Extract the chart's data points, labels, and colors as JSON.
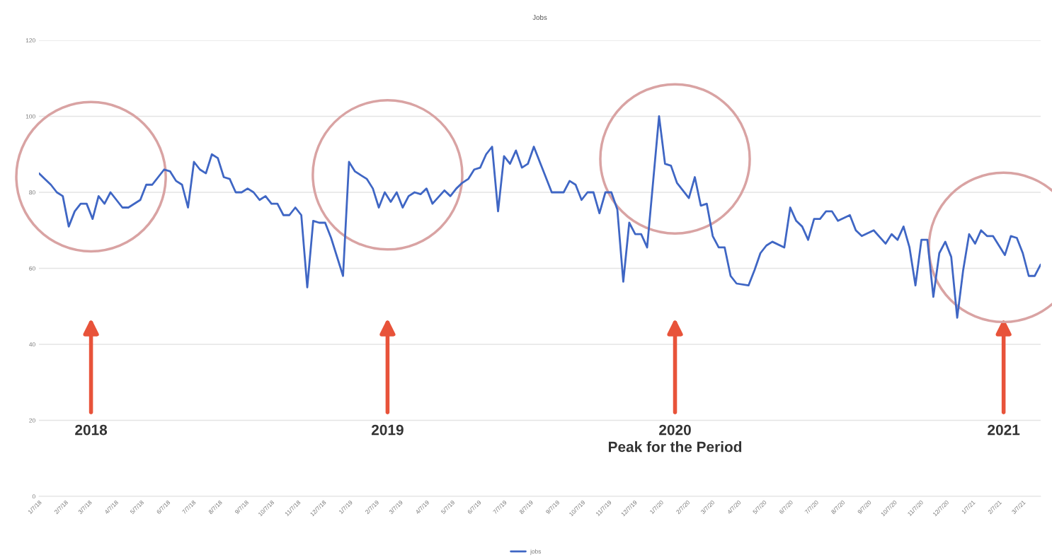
{
  "chart_data": {
    "type": "line",
    "title": "Jobs",
    "x": [
      "2018-01-07",
      "2018-01-14",
      "2018-01-21",
      "2018-01-28",
      "2018-02-04",
      "2018-02-11",
      "2018-02-18",
      "2018-02-25",
      "2018-03-04",
      "2018-03-11",
      "2018-03-18",
      "2018-03-25",
      "2018-04-01",
      "2018-04-08",
      "2018-04-15",
      "2018-04-22",
      "2018-05-06",
      "2018-05-13",
      "2018-05-20",
      "2018-05-27",
      "2018-06-03",
      "2018-06-10",
      "2018-06-17",
      "2018-06-24",
      "2018-07-01",
      "2018-07-08",
      "2018-07-15",
      "2018-07-22",
      "2018-07-29",
      "2018-08-05",
      "2018-08-12",
      "2018-08-19",
      "2018-08-26",
      "2018-09-02",
      "2018-09-09",
      "2018-09-16",
      "2018-09-23",
      "2018-09-30",
      "2018-10-07",
      "2018-10-14",
      "2018-10-21",
      "2018-10-28",
      "2018-11-04",
      "2018-11-11",
      "2018-11-18",
      "2018-11-25",
      "2018-12-02",
      "2018-12-09",
      "2018-12-16",
      "2018-12-30",
      "2019-01-06",
      "2019-01-13",
      "2019-01-20",
      "2019-01-27",
      "2019-02-03",
      "2019-02-10",
      "2019-02-17",
      "2019-02-24",
      "2019-03-03",
      "2019-03-10",
      "2019-03-17",
      "2019-03-24",
      "2019-03-31",
      "2019-04-07",
      "2019-04-14",
      "2019-04-28",
      "2019-05-05",
      "2019-05-12",
      "2019-05-19",
      "2019-05-26",
      "2019-06-02",
      "2019-06-09",
      "2019-06-16",
      "2019-06-23",
      "2019-06-30",
      "2019-07-07",
      "2019-07-14",
      "2019-07-21",
      "2019-07-28",
      "2019-08-04",
      "2019-08-11",
      "2019-09-01",
      "2019-09-15",
      "2019-09-22",
      "2019-09-29",
      "2019-10-06",
      "2019-10-13",
      "2019-10-20",
      "2019-10-27",
      "2019-11-03",
      "2019-11-10",
      "2019-11-17",
      "2019-11-24",
      "2019-12-01",
      "2019-12-08",
      "2019-12-15",
      "2019-12-22",
      "2020-01-05",
      "2020-01-12",
      "2020-01-19",
      "2020-01-26",
      "2020-02-09",
      "2020-02-16",
      "2020-02-23",
      "2020-03-01",
      "2020-03-08",
      "2020-03-15",
      "2020-03-22",
      "2020-03-29",
      "2020-04-05",
      "2020-04-19",
      "2020-04-26",
      "2020-05-03",
      "2020-05-10",
      "2020-05-17",
      "2020-05-31",
      "2020-06-07",
      "2020-06-14",
      "2020-06-21",
      "2020-06-28",
      "2020-07-05",
      "2020-07-12",
      "2020-07-19",
      "2020-07-26",
      "2020-08-02",
      "2020-08-16",
      "2020-08-23",
      "2020-08-30",
      "2020-09-13",
      "2020-09-27",
      "2020-10-04",
      "2020-10-11",
      "2020-10-18",
      "2020-10-25",
      "2020-11-01",
      "2020-11-08",
      "2020-11-15",
      "2020-11-22",
      "2020-11-29",
      "2020-12-06",
      "2020-12-13",
      "2020-12-20",
      "2020-12-27",
      "2021-01-03",
      "2021-01-10",
      "2021-01-17",
      "2021-01-24",
      "2021-01-31",
      "2021-02-14",
      "2021-02-21",
      "2021-02-28",
      "2021-03-07",
      "2021-03-14",
      "2021-03-21",
      "2021-03-28"
    ],
    "series": [
      {
        "name": "jobs",
        "color": "#3f66c4",
        "values": [
          85,
          83.5,
          82,
          80,
          79,
          71,
          75,
          77,
          77,
          73,
          79,
          77,
          80,
          78,
          76,
          76,
          78,
          82,
          82,
          84,
          86,
          85.5,
          83,
          82,
          76,
          88,
          86,
          85,
          90,
          89,
          84,
          83.5,
          80,
          80,
          81,
          80,
          78,
          79,
          77,
          77,
          74,
          74,
          76,
          74,
          55,
          72.5,
          72,
          72,
          68,
          58,
          88,
          85.5,
          84.5,
          83.5,
          81,
          76,
          80,
          77.5,
          80,
          76,
          79,
          80,
          79.5,
          81,
          77,
          80.5,
          79,
          81,
          82.5,
          83.5,
          86,
          86.5,
          90,
          92,
          75,
          89.5,
          87.5,
          91,
          86.5,
          87.5,
          92,
          80,
          80,
          83,
          82,
          78,
          80,
          80,
          74.5,
          80,
          80,
          75.5,
          56.5,
          72,
          69,
          69,
          65.5,
          100,
          87.5,
          87,
          82.5,
          78.5,
          84,
          76.5,
          77,
          68.5,
          65.5,
          65.5,
          58,
          56,
          55.5,
          59.5,
          64,
          66,
          67,
          65.5,
          76,
          72.5,
          71,
          67.5,
          73,
          73,
          75,
          75,
          72.5,
          74,
          70,
          68.5,
          70,
          66.5,
          69,
          67.5,
          71,
          65.5,
          55.5,
          67.5,
          67.5,
          52.5,
          64,
          67,
          63,
          47,
          59.5,
          69,
          66.5,
          70,
          68.5,
          68.5,
          63.5,
          68.5,
          68,
          64,
          58,
          58,
          61
        ]
      }
    ],
    "xlim": [
      "2018-01-07",
      "2021-03-28"
    ],
    "xticks": [
      {
        "value": "2018-01-07",
        "label": "1/7/18"
      },
      {
        "value": "2018-02-07",
        "label": "2/7/18"
      },
      {
        "value": "2018-03-07",
        "label": "3/7/18"
      },
      {
        "value": "2018-04-07",
        "label": "4/7/18"
      },
      {
        "value": "2018-05-07",
        "label": "5/7/18"
      },
      {
        "value": "2018-06-07",
        "label": "6/7/18"
      },
      {
        "value": "2018-07-07",
        "label": "7/7/18"
      },
      {
        "value": "2018-08-07",
        "label": "8/7/18"
      },
      {
        "value": "2018-09-07",
        "label": "9/7/18"
      },
      {
        "value": "2018-10-07",
        "label": "10/7/18"
      },
      {
        "value": "2018-11-07",
        "label": "11/7/18"
      },
      {
        "value": "2018-12-07",
        "label": "12/7/18"
      },
      {
        "value": "2019-01-07",
        "label": "1/7/19"
      },
      {
        "value": "2019-02-07",
        "label": "2/7/19"
      },
      {
        "value": "2019-03-07",
        "label": "3/7/19"
      },
      {
        "value": "2019-04-07",
        "label": "4/7/19"
      },
      {
        "value": "2019-05-07",
        "label": "5/7/19"
      },
      {
        "value": "2019-06-07",
        "label": "6/7/19"
      },
      {
        "value": "2019-07-07",
        "label": "7/7/19"
      },
      {
        "value": "2019-08-07",
        "label": "8/7/19"
      },
      {
        "value": "2019-09-07",
        "label": "9/7/19"
      },
      {
        "value": "2019-10-07",
        "label": "10/7/19"
      },
      {
        "value": "2019-11-07",
        "label": "11/7/19"
      },
      {
        "value": "2019-12-07",
        "label": "12/7/19"
      },
      {
        "value": "2020-01-07",
        "label": "1/7/20"
      },
      {
        "value": "2020-02-07",
        "label": "2/7/20"
      },
      {
        "value": "2020-03-07",
        "label": "3/7/20"
      },
      {
        "value": "2020-04-07",
        "label": "4/7/20"
      },
      {
        "value": "2020-05-07",
        "label": "5/7/20"
      },
      {
        "value": "2020-06-07",
        "label": "6/7/20"
      },
      {
        "value": "2020-07-07",
        "label": "7/7/20"
      },
      {
        "value": "2020-08-07",
        "label": "8/7/20"
      },
      {
        "value": "2020-09-07",
        "label": "9/7/20"
      },
      {
        "value": "2020-10-07",
        "label": "10/7/20"
      },
      {
        "value": "2020-11-07",
        "label": "11/7/20"
      },
      {
        "value": "2020-12-07",
        "label": "12/7/20"
      },
      {
        "value": "2021-01-07",
        "label": "1/7/21"
      },
      {
        "value": "2021-02-07",
        "label": "2/7/21"
      },
      {
        "value": "2021-03-07",
        "label": "3/7/21"
      }
    ],
    "ylim": [
      0,
      120
    ],
    "yticks": [
      0,
      20,
      40,
      60,
      80,
      100,
      120
    ],
    "grid": "y",
    "legend": "bottom",
    "annotations": [
      "2018",
      "2019",
      "2020\nPeak for the Period",
      "2021"
    ]
  }
}
